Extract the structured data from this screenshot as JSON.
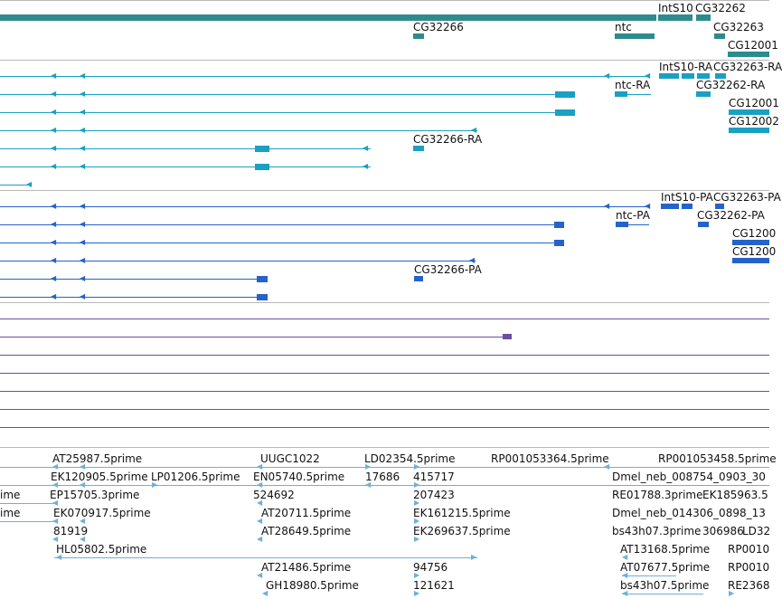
{
  "tracks": {
    "genes": {
      "labels": [
        "IntS10",
        "CG32262",
        "CG32266",
        "ntc",
        "CG32263",
        "CG12001"
      ]
    },
    "transcripts": {
      "labels": [
        "IntS10-RA",
        "CG32263-RA",
        "ntc-RA",
        "CG32262-RA",
        "CG12001",
        "CG12002",
        "CG32266-RA"
      ]
    },
    "proteins": {
      "labels": [
        "IntS10-PA",
        "CG32263-PA",
        "ntc-PA",
        "CG32262-PA",
        "CG1200",
        "CG1200",
        "CG32266-PA"
      ]
    },
    "ests": {
      "row1": [
        "AT25987.5prime",
        "UUGC1022",
        "LD02354.5prime",
        "RP001053364.5prime",
        "RP001053458.5prime"
      ],
      "row2": [
        "EK120905.5prime",
        "LP01206.5prime",
        "EN05740.5prime",
        "17686",
        "415717",
        "Dmel_neb_008754_0903_30"
      ],
      "row3": [
        "ime",
        "EP15705.3prime",
        "524692",
        "207423",
        "RE01788.3prime",
        "EK185963.5"
      ],
      "row4": [
        "ime",
        "EK070917.5prime",
        "AT20711.5prime",
        "EK161215.5prime",
        "Dmel_neb_014306_0898_13"
      ],
      "row5": [
        "81919",
        "AT28649.5prime",
        "EK269637.5prime",
        "bs43h07.3prime",
        "306986",
        "LD32"
      ],
      "row6": [
        "HL05802.5prime",
        "AT13168.5prime",
        "RP0010"
      ],
      "row7": [
        "AT21486.5prime",
        "94756",
        "AT07677.5prime",
        "RP0010"
      ],
      "row8": [
        "GH18980.5prime",
        "121621",
        "bs43h07.5prime",
        "RE2368"
      ]
    }
  },
  "colors": {
    "gene": "#2e8b8b",
    "transcript": "#1aa0c2",
    "protein": "#2563c9",
    "variation": "#6b4fa0",
    "est": "#6fb0d8",
    "separator": "#b9b9b9"
  }
}
